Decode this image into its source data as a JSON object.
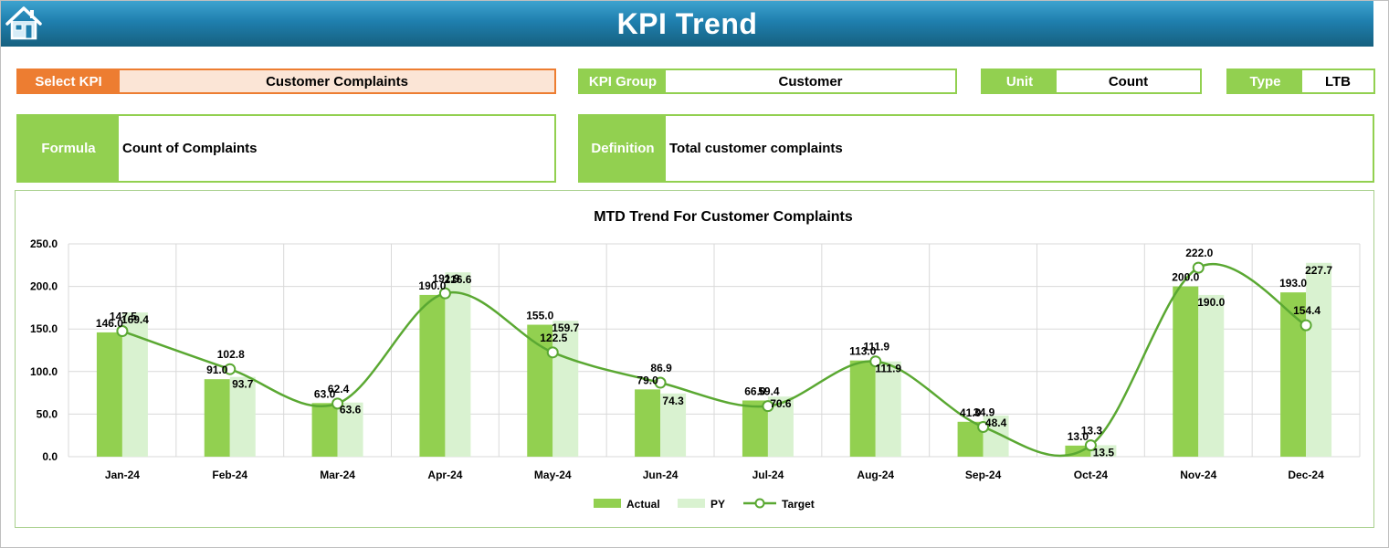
{
  "header": {
    "title": "KPI Trend",
    "home_icon": "home-icon"
  },
  "selectors": {
    "select_kpi": {
      "label": "Select KPI",
      "value": "Customer Complaints"
    },
    "kpi_group": {
      "label": "KPI Group",
      "value": "Customer"
    },
    "unit": {
      "label": "Unit",
      "value": "Count"
    },
    "type": {
      "label": "Type",
      "value": "LTB"
    }
  },
  "formula": {
    "label": "Formula",
    "value": "Count of Complaints"
  },
  "definition": {
    "label": "Definition",
    "value": "Total customer complaints"
  },
  "colors": {
    "accent": "#92d050",
    "select": "#ed7d31",
    "select_bg": "#fbe5d6",
    "actual": "#92d050",
    "py": "#d9f2d0",
    "target": "#5aa832"
  },
  "chart_data": {
    "type": "bar",
    "title": "MTD Trend For Customer Complaints",
    "categories": [
      "Jan-24",
      "Feb-24",
      "Mar-24",
      "Apr-24",
      "May-24",
      "Jun-24",
      "Jul-24",
      "Aug-24",
      "Sep-24",
      "Oct-24",
      "Nov-24",
      "Dec-24"
    ],
    "series": [
      {
        "name": "Actual",
        "kind": "bar",
        "values": [
          146.0,
          91.0,
          63.0,
          190.0,
          155.0,
          79.0,
          66.0,
          113.0,
          41.0,
          13.0,
          200.0,
          193.0
        ]
      },
      {
        "name": "PY",
        "kind": "bar",
        "values": [
          169.4,
          93.7,
          63.6,
          216.6,
          159.7,
          74.3,
          70.6,
          111.9,
          48.4,
          13.5,
          190.0,
          227.7
        ]
      },
      {
        "name": "Target",
        "kind": "line",
        "values": [
          147.5,
          102.8,
          62.4,
          191.9,
          122.5,
          86.9,
          59.4,
          111.9,
          34.9,
          13.3,
          222.0,
          154.4
        ]
      }
    ],
    "ylim": [
      0,
      250
    ],
    "yticks": [
      0,
      50,
      100,
      150,
      200,
      250
    ],
    "ytick_labels": [
      "0.0",
      "50.0",
      "100.0",
      "150.0",
      "200.0",
      "250.0"
    ],
    "xlabel": "",
    "ylabel": "",
    "grid": true,
    "legend": "bottom-center",
    "legend_labels": [
      "Actual",
      "PY",
      "Target"
    ]
  }
}
